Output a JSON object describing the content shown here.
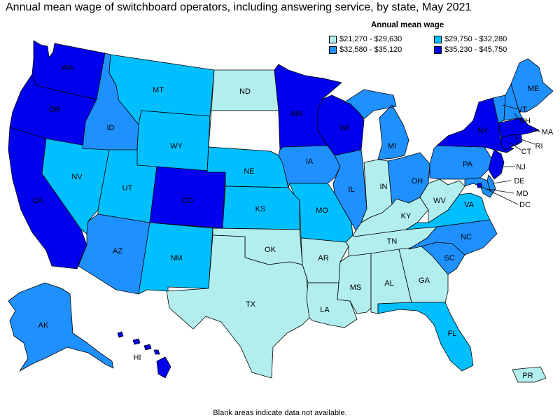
{
  "title": "Annual mean wage of switchboard operators, including answering service, by state, May 2021",
  "legend": {
    "title": "Annual mean wage",
    "items": [
      {
        "label": "$21,270 - $29,630",
        "color": "#b2eeee"
      },
      {
        "label": "$29,750 - $32,280",
        "color": "#00bfff"
      },
      {
        "label": "$32,580 - $35,120",
        "color": "#1e90ff"
      },
      {
        "label": "$35,230 - $45,750",
        "color": "#0000ee"
      }
    ]
  },
  "footnote": "Blank areas indicate data not available.",
  "colors": {
    "c1": "#b2eeee",
    "c2": "#00bfff",
    "c3": "#1e90ff",
    "c4": "#0000ee",
    "nodata": "#ffffff"
  },
  "states": {
    "WA": "c4",
    "OR": "c4",
    "CA": "c4",
    "NV": "c2",
    "ID": "c3",
    "MT": "c2",
    "WY": "c2",
    "UT": "c2",
    "AZ": "c3",
    "CO": "c4",
    "NM": "c2",
    "ND": "c1",
    "SD": "nodata",
    "NE": "c2",
    "KS": "c2",
    "OK": "c1",
    "TX": "c1",
    "MN": "c4",
    "IA": "c3",
    "MO": "c2",
    "AR": "c1",
    "LA": "c1",
    "WI": "c4",
    "IL": "c3",
    "MI": "c3",
    "IN": "c1",
    "OH": "c3",
    "KY": "c1",
    "TN": "c1",
    "MS": "c1",
    "AL": "c1",
    "GA": "c1",
    "FL": "c2",
    "SC": "c3",
    "NC": "c3",
    "VA": "c2",
    "WV": "c1",
    "PA": "c3",
    "NY": "c4",
    "VT": "c3",
    "NH": "c3",
    "ME": "c3",
    "MA": "c4",
    "RI": "c4",
    "CT": "c4",
    "NJ": "c4",
    "DE": "c3",
    "MD": "c3",
    "DC": "c4",
    "AK": "c3",
    "HI": "c4",
    "PR": "c1"
  },
  "labels": {
    "WA": "WA",
    "OR": "OR",
    "CA": "CA",
    "NV": "NV",
    "ID": "ID",
    "MT": "MT",
    "WY": "WY",
    "UT": "UT",
    "AZ": "AZ",
    "CO": "CO",
    "NM": "NM",
    "ND": "ND",
    "NE": "NE",
    "KS": "KS",
    "OK": "OK",
    "TX": "TX",
    "MN": "MN",
    "IA": "IA",
    "MO": "MO",
    "AR": "AR",
    "LA": "LA",
    "WI": "WI",
    "IL": "IL",
    "MI": "MI",
    "IN": "IN",
    "OH": "OH",
    "KY": "KY",
    "TN": "TN",
    "MS": "MS",
    "AL": "AL",
    "GA": "GA",
    "FL": "FL",
    "SC": "SC",
    "NC": "NC",
    "VA": "VA",
    "WV": "WV",
    "PA": "PA",
    "NY": "NY",
    "VT": "VT",
    "NH": "NH",
    "ME": "ME",
    "MA": "MA",
    "RI": "RI",
    "CT": "CT",
    "NJ": "NJ",
    "DE": "DE",
    "MD": "MD",
    "DC": "DC",
    "AK": "AK",
    "HI": "HI",
    "PR": "PR"
  }
}
